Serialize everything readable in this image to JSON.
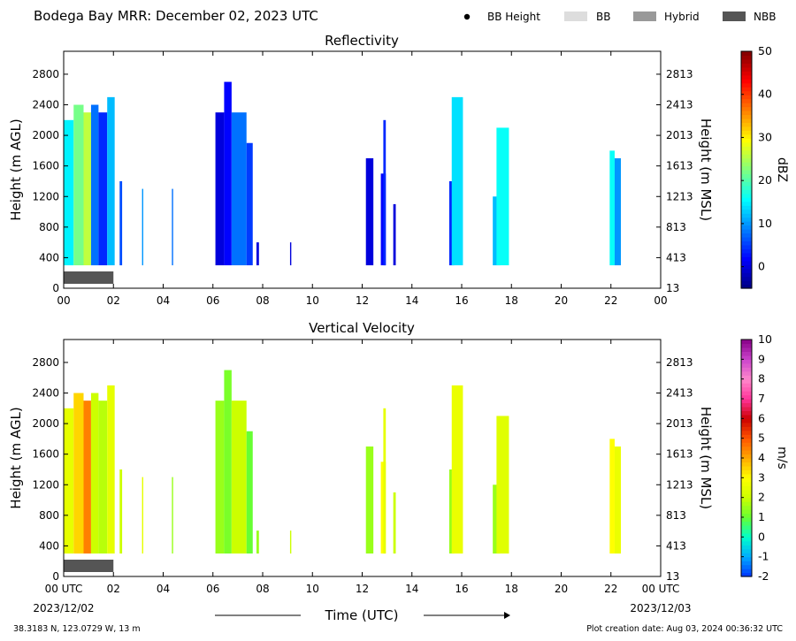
{
  "header": {
    "title": "Bodega Bay MRR:  December 02, 2023 UTC",
    "legend": [
      {
        "label": "BB Height",
        "swatch": "dot",
        "color": "#000000"
      },
      {
        "label": "BB",
        "swatch": "rect",
        "color": "#dddddd"
      },
      {
        "label": "Hybrid",
        "swatch": "rect",
        "color": "#999999"
      },
      {
        "label": "NBB",
        "swatch": "rect",
        "color": "#555555"
      }
    ]
  },
  "footer": {
    "location": "38.3183 N, 123.0729 W, 13 m",
    "creation": "Plot creation date: Aug 03, 2024 00:36:32 UTC",
    "xlabel": "Time (UTC)",
    "start_date": "2023/12/02",
    "end_date": "2023/12/03"
  },
  "chart_data": [
    {
      "type": "heatmap",
      "title": "Reflectivity",
      "ylabel": "Height (m AGL)",
      "ylabel_right": "Height (m MSL)",
      "xlim": [
        0,
        24
      ],
      "ylim": [
        0,
        3100
      ],
      "x_ticks": [
        "00",
        "02",
        "04",
        "06",
        "08",
        "10",
        "12",
        "14",
        "16",
        "18",
        "20",
        "22",
        "00"
      ],
      "y_ticks": [
        0,
        400,
        800,
        1200,
        1600,
        2000,
        2400,
        2800
      ],
      "y_ticks_right": [
        "13",
        "413",
        "813",
        "1213",
        "1613",
        "2013",
        "2413",
        "2813"
      ],
      "colorbar": {
        "label": "dBZ",
        "min": -5,
        "max": 50,
        "ticks": [
          0,
          10,
          20,
          30,
          40,
          50
        ],
        "colors": [
          "#00007f",
          "#0000ff",
          "#007fff",
          "#00ffff",
          "#7fff7f",
          "#ffff00",
          "#ff7f00",
          "#ff0000",
          "#7f0000"
        ]
      },
      "bb_band": {
        "class": "NBB",
        "x0": 0.0,
        "x1": 2.0
      },
      "segments": [
        {
          "t0": 0.0,
          "t1": 0.4,
          "top": 2200,
          "value": 15
        },
        {
          "t0": 0.4,
          "t1": 0.8,
          "top": 2400,
          "value": 22
        },
        {
          "t0": 0.8,
          "t1": 1.1,
          "top": 2300,
          "value": 26
        },
        {
          "t0": 1.1,
          "t1": 1.4,
          "top": 2400,
          "value": 8
        },
        {
          "t0": 1.4,
          "t1": 1.75,
          "top": 2300,
          "value": 4
        },
        {
          "t0": 1.75,
          "t1": 2.05,
          "top": 2500,
          "value": 12
        },
        {
          "t0": 2.25,
          "t1": 2.35,
          "top": 1400,
          "value": 6
        },
        {
          "t0": 3.15,
          "t1": 3.2,
          "top": 1300,
          "value": 10
        },
        {
          "t0": 4.35,
          "t1": 4.4,
          "top": 1300,
          "value": 8
        },
        {
          "t0": 6.1,
          "t1": 6.45,
          "top": 2300,
          "value": 0
        },
        {
          "t0": 6.45,
          "t1": 6.75,
          "top": 2700,
          "value": 2
        },
        {
          "t0": 6.75,
          "t1": 7.35,
          "top": 2300,
          "value": 8
        },
        {
          "t0": 7.35,
          "t1": 7.6,
          "top": 1900,
          "value": 5
        },
        {
          "t0": 7.75,
          "t1": 7.85,
          "top": 600,
          "value": 0
        },
        {
          "t0": 9.1,
          "t1": 9.15,
          "top": 600,
          "value": 0
        },
        {
          "t0": 12.15,
          "t1": 12.45,
          "top": 1700,
          "value": 0
        },
        {
          "t0": 12.75,
          "t1": 12.95,
          "top": 1500,
          "value": 2
        },
        {
          "t0": 12.85,
          "t1": 12.95,
          "top": 2200,
          "value": 4
        },
        {
          "t0": 13.25,
          "t1": 13.35,
          "top": 1100,
          "value": 0
        },
        {
          "t0": 15.5,
          "t1": 15.7,
          "top": 1400,
          "value": 4
        },
        {
          "t0": 15.6,
          "t1": 16.05,
          "top": 2500,
          "value": 14
        },
        {
          "t0": 17.25,
          "t1": 17.55,
          "top": 1200,
          "value": 12
        },
        {
          "t0": 17.4,
          "t1": 17.9,
          "top": 2100,
          "value": 16
        },
        {
          "t0": 21.95,
          "t1": 22.15,
          "top": 1800,
          "value": 16
        },
        {
          "t0": 22.15,
          "t1": 22.4,
          "top": 1700,
          "value": 10
        }
      ]
    },
    {
      "type": "heatmap",
      "title": "Vertical Velocity",
      "ylabel": "Height (m AGL)",
      "ylabel_right": "Height (m MSL)",
      "xlim": [
        0,
        24
      ],
      "ylim": [
        0,
        3100
      ],
      "x_ticks": [
        "00 UTC",
        "02",
        "04",
        "06",
        "08",
        "10",
        "12",
        "14",
        "16",
        "18",
        "20",
        "22",
        "00 UTC"
      ],
      "y_ticks": [
        0,
        400,
        800,
        1200,
        1600,
        2000,
        2400,
        2800
      ],
      "y_ticks_right": [
        "13",
        "413",
        "813",
        "1213",
        "1613",
        "2013",
        "2413",
        "2813"
      ],
      "colorbar": {
        "label": "m/s",
        "min": -2,
        "max": 10,
        "ticks": [
          -2,
          -1,
          0,
          1,
          2,
          3,
          4,
          5,
          6,
          7,
          8,
          9,
          10
        ],
        "colors": [
          "#0033ff",
          "#00aaff",
          "#00ffcc",
          "#66ff33",
          "#ccff00",
          "#ffff00",
          "#ffaa00",
          "#ff5500",
          "#cc0000",
          "#ff3399",
          "#ff88cc",
          "#cc44cc",
          "#880088"
        ]
      },
      "bb_band": {
        "class": "NBB",
        "x0": 0.0,
        "x1": 2.0
      },
      "segments": [
        {
          "t0": 0.0,
          "t1": 0.4,
          "top": 2200,
          "value": 2.5
        },
        {
          "t0": 0.4,
          "t1": 0.8,
          "top": 2400,
          "value": 3.5
        },
        {
          "t0": 0.8,
          "t1": 1.1,
          "top": 2300,
          "value": 4.5
        },
        {
          "t0": 1.1,
          "t1": 1.4,
          "top": 2400,
          "value": 2.0
        },
        {
          "t0": 1.4,
          "t1": 1.75,
          "top": 2300,
          "value": 1.8
        },
        {
          "t0": 1.75,
          "t1": 2.05,
          "top": 2500,
          "value": 2.5
        },
        {
          "t0": 2.25,
          "t1": 2.35,
          "top": 1400,
          "value": 2.0
        },
        {
          "t0": 3.15,
          "t1": 3.2,
          "top": 1300,
          "value": 2.5
        },
        {
          "t0": 4.35,
          "t1": 4.4,
          "top": 1300,
          "value": 1.5
        },
        {
          "t0": 6.1,
          "t1": 6.45,
          "top": 2300,
          "value": 1.5
        },
        {
          "t0": 6.45,
          "t1": 6.75,
          "top": 2700,
          "value": 1.2
        },
        {
          "t0": 6.75,
          "t1": 7.35,
          "top": 2300,
          "value": 2.0
        },
        {
          "t0": 7.35,
          "t1": 7.6,
          "top": 1900,
          "value": 1.0
        },
        {
          "t0": 7.75,
          "t1": 7.85,
          "top": 600,
          "value": 1.5
        },
        {
          "t0": 9.1,
          "t1": 9.15,
          "top": 600,
          "value": 2.0
        },
        {
          "t0": 12.15,
          "t1": 12.45,
          "top": 1700,
          "value": 1.5
        },
        {
          "t0": 12.75,
          "t1": 12.95,
          "top": 1500,
          "value": 3.0
        },
        {
          "t0": 12.85,
          "t1": 12.95,
          "top": 2200,
          "value": 2.5
        },
        {
          "t0": 13.25,
          "t1": 13.35,
          "top": 1100,
          "value": 2.0
        },
        {
          "t0": 15.5,
          "t1": 15.7,
          "top": 1400,
          "value": 1.5
        },
        {
          "t0": 15.6,
          "t1": 16.05,
          "top": 2500,
          "value": 2.6
        },
        {
          "t0": 17.25,
          "t1": 17.55,
          "top": 1200,
          "value": 1.5
        },
        {
          "t0": 17.4,
          "t1": 17.9,
          "top": 2100,
          "value": 2.4
        },
        {
          "t0": 21.95,
          "t1": 22.15,
          "top": 1800,
          "value": 3.0
        },
        {
          "t0": 22.15,
          "t1": 22.4,
          "top": 1700,
          "value": 2.6
        }
      ]
    }
  ]
}
